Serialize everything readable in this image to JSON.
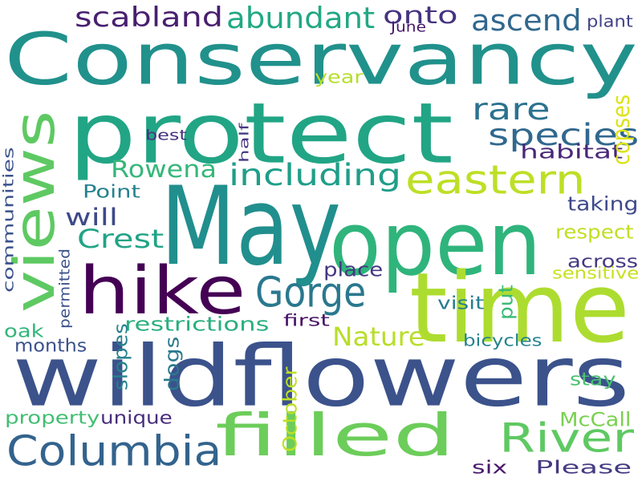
{
  "words": [
    {
      "text": "Conservancy",
      "color": "#21918c"
    },
    {
      "text": "protect",
      "color": "#21a585"
    },
    {
      "text": "May",
      "color": "#218f8d"
    },
    {
      "text": "open",
      "color": "#2fb47c"
    },
    {
      "text": "time",
      "color": "#addc30"
    },
    {
      "text": "wildflowers",
      "color": "#3b528b"
    },
    {
      "text": "hike",
      "color": "#440154"
    },
    {
      "text": "views",
      "color": "#5ec962"
    },
    {
      "text": "filled",
      "color": "#6ccd5a"
    },
    {
      "text": "eastern",
      "color": "#bddf26"
    },
    {
      "text": "Gorge",
      "color": "#2a788e"
    },
    {
      "text": "Columbia",
      "color": "#33638d"
    },
    {
      "text": "River",
      "color": "#5ec962"
    },
    {
      "text": "including",
      "color": "#1f9e89"
    },
    {
      "text": "scabland",
      "color": "#481f70"
    },
    {
      "text": "abundant",
      "color": "#22a884"
    },
    {
      "text": "onto",
      "color": "#463480"
    },
    {
      "text": "ascend",
      "color": "#31688e"
    },
    {
      "text": "rare",
      "color": "#2c728e"
    },
    {
      "text": "species",
      "color": "#31688e"
    },
    {
      "text": "Rowena",
      "color": "#35b779"
    },
    {
      "text": "Crest",
      "color": "#20a486"
    },
    {
      "text": "will",
      "color": "#3e4989"
    },
    {
      "text": "Nature",
      "color": "#b8de29"
    },
    {
      "text": "habitat",
      "color": "#482878"
    },
    {
      "text": "copses",
      "color": "#dde318"
    },
    {
      "text": "Point",
      "color": "#26818e"
    },
    {
      "text": "taking",
      "color": "#3e4989"
    },
    {
      "text": "respect",
      "color": "#c2df23"
    },
    {
      "text": "across",
      "color": "#443983"
    },
    {
      "text": "sensitive",
      "color": "#c8e020"
    },
    {
      "text": "place",
      "color": "#453781"
    },
    {
      "text": "put",
      "color": "#3aba76"
    },
    {
      "text": "visit",
      "color": "#287c8e"
    },
    {
      "text": "first",
      "color": "#471365"
    },
    {
      "text": "restrictions",
      "color": "#29af7f"
    },
    {
      "text": "oak",
      "color": "#32b67a"
    },
    {
      "text": "months",
      "color": "#3b528b"
    },
    {
      "text": "slopes",
      "color": "#26828e"
    },
    {
      "text": "dogs",
      "color": "#2a788e"
    },
    {
      "text": "October",
      "color": "#bddf26"
    },
    {
      "text": "bicycles",
      "color": "#25838e"
    },
    {
      "text": "stay",
      "color": "#4ac16d"
    },
    {
      "text": "McCall",
      "color": "#7ad151"
    },
    {
      "text": "property",
      "color": "#42be71"
    },
    {
      "text": "unique",
      "color": "#472d7b"
    },
    {
      "text": "six",
      "color": "#48186a"
    },
    {
      "text": "Please",
      "color": "#443a83"
    },
    {
      "text": "permitted",
      "color": "#3b518b"
    },
    {
      "text": "communities",
      "color": "#3b528b"
    },
    {
      "text": "year",
      "color": "#b5de2b"
    },
    {
      "text": "June",
      "color": "#481769"
    },
    {
      "text": "plant",
      "color": "#414487"
    },
    {
      "text": "best",
      "color": "#46307e"
    },
    {
      "text": "half",
      "color": "#453882"
    }
  ]
}
